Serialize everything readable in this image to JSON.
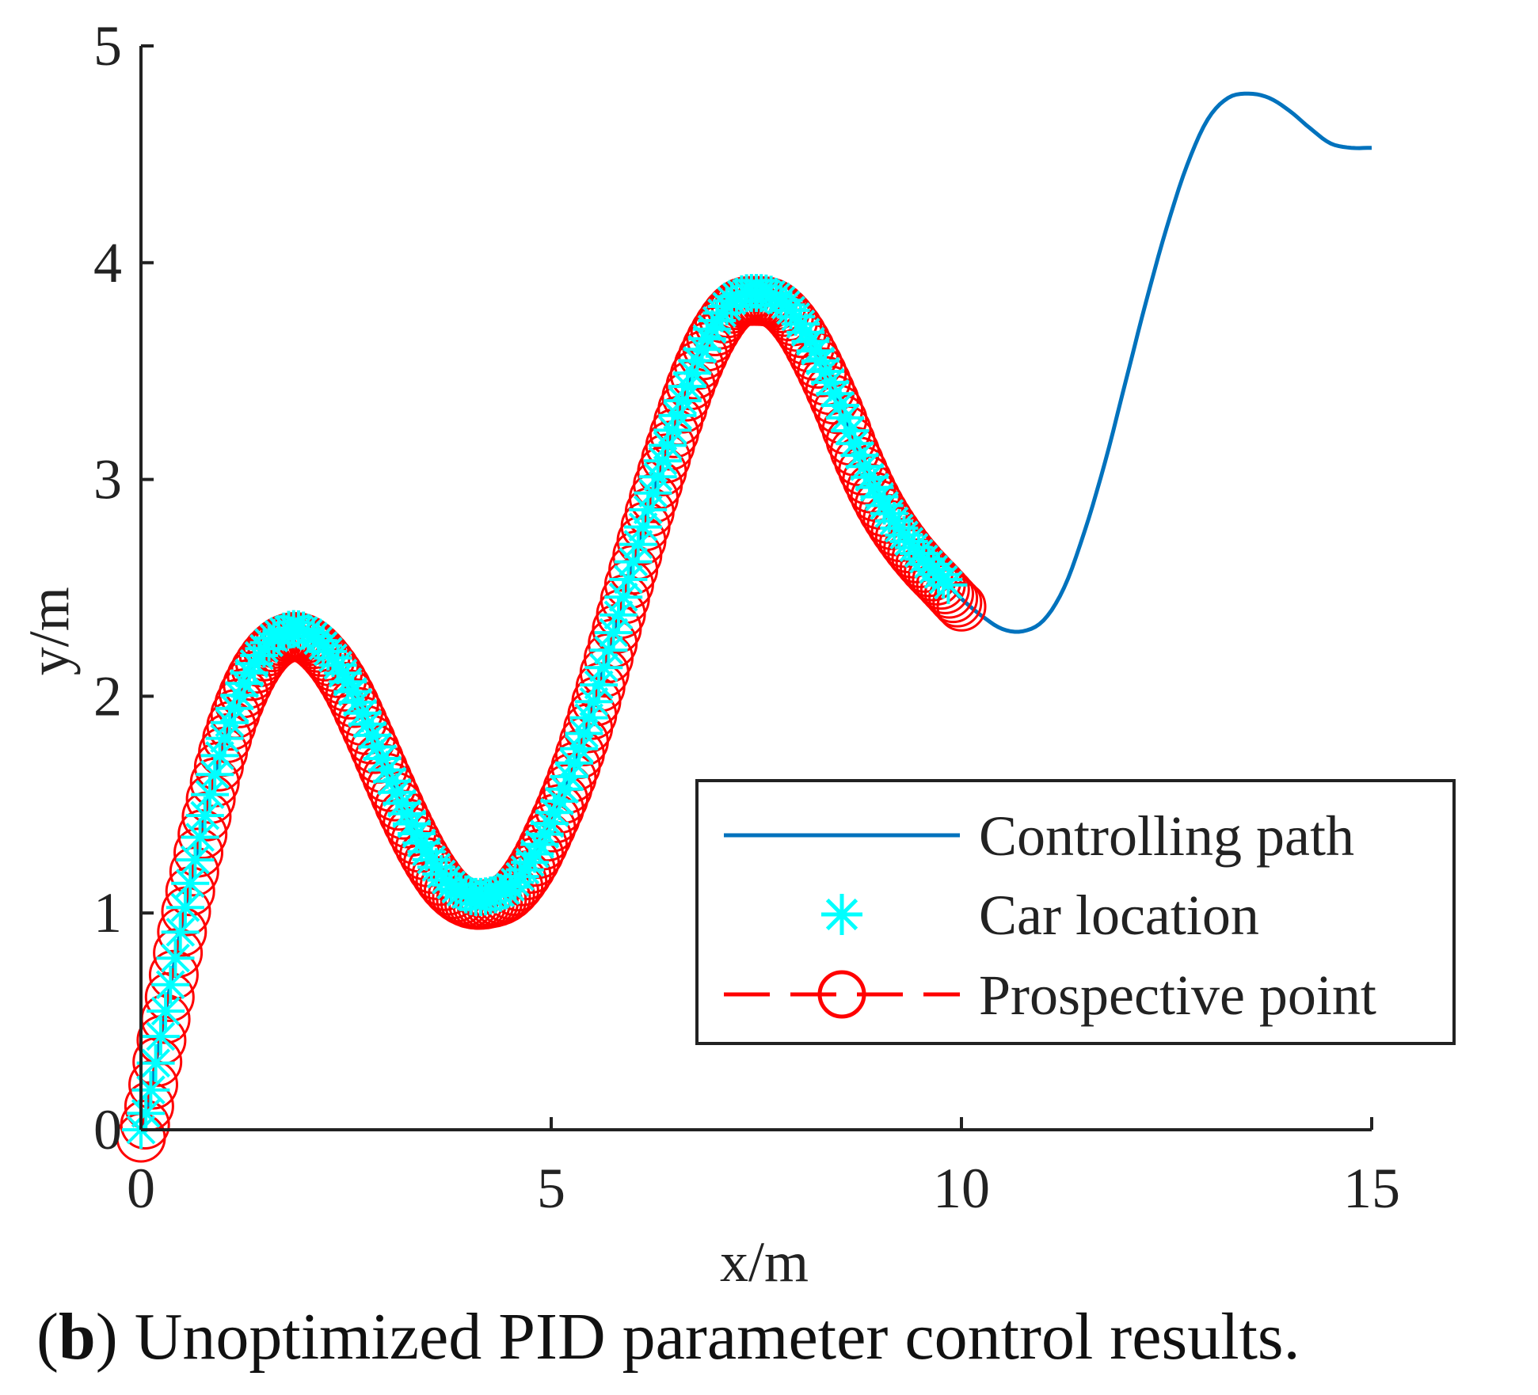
{
  "chart_data": {
    "type": "line",
    "title": "",
    "xlabel": "x/m",
    "ylabel": "y/m",
    "xlim": [
      0,
      15
    ],
    "ylim": [
      0,
      5
    ],
    "xticks": [
      0,
      5,
      10,
      15
    ],
    "yticks": [
      0,
      1,
      2,
      3,
      4,
      5
    ],
    "xtick_labels": [
      "0",
      "5",
      "10",
      "15"
    ],
    "ytick_labels": [
      "0",
      "1",
      "2",
      "3",
      "4",
      "5"
    ],
    "grid": false,
    "legend_position": "bottom-right",
    "series": [
      {
        "name": "Controlling path",
        "style": "solid-line",
        "color": "#0072BD",
        "x": [
          0,
          0.25,
          0.5,
          0.75,
          1.0,
          1.25,
          1.5,
          1.75,
          2.0,
          2.25,
          2.5,
          2.75,
          3.0,
          3.25,
          3.5,
          3.75,
          4.0,
          4.25,
          4.5,
          4.75,
          5.0,
          5.25,
          5.5,
          5.75,
          6.0,
          6.25,
          6.5,
          6.75,
          7.0,
          7.25,
          7.5,
          7.75,
          8.0,
          8.25,
          8.5,
          8.75,
          9.0,
          9.25,
          9.5,
          9.75,
          10.0,
          10.25,
          10.5,
          10.75,
          11.0,
          11.25,
          11.5,
          11.75,
          12.0,
          12.25,
          12.5,
          12.75,
          13.0,
          13.25,
          13.5,
          13.75,
          14.0,
          14.25,
          14.5,
          14.75,
          15.0
        ],
        "y": [
          0,
          0.45,
          0.95,
          1.4,
          1.78,
          2.05,
          2.22,
          2.3,
          2.3,
          2.22,
          2.08,
          1.88,
          1.66,
          1.45,
          1.27,
          1.14,
          1.08,
          1.08,
          1.12,
          1.24,
          1.43,
          1.66,
          1.95,
          2.28,
          2.62,
          2.95,
          3.25,
          3.52,
          3.72,
          3.84,
          3.86,
          3.84,
          3.74,
          3.57,
          3.36,
          3.12,
          2.92,
          2.77,
          2.65,
          2.55,
          2.45,
          2.37,
          2.31,
          2.3,
          2.35,
          2.5,
          2.76,
          3.08,
          3.45,
          3.82,
          4.16,
          4.45,
          4.66,
          4.76,
          4.78,
          4.76,
          4.7,
          4.62,
          4.55,
          4.53,
          4.53
        ]
      },
      {
        "name": "Car location",
        "style": "asterisk-markers",
        "color": "#00FFFF",
        "x_range": [
          0,
          9.85
        ]
      },
      {
        "name": "Prospective point",
        "style": "dashed-line-circle-markers",
        "color": "#FF0000",
        "x_range": [
          0,
          10.0
        ]
      }
    ]
  },
  "caption": {
    "label": "b",
    "text": "Unoptimized PID parameter control results."
  }
}
